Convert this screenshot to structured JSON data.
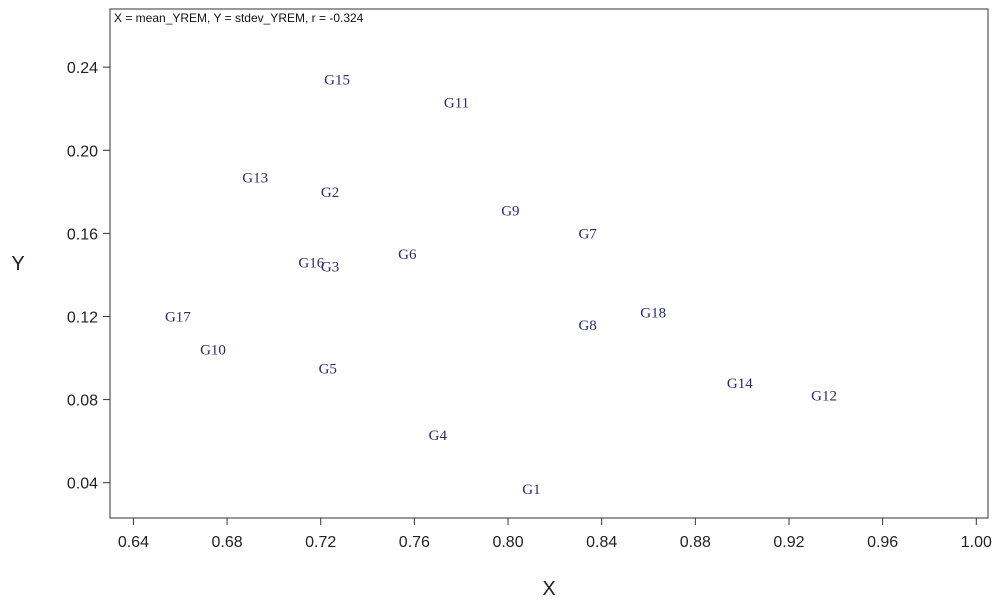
{
  "chart_data": {
    "type": "scatter",
    "annotation": "X = mean_YREM, Y = stdev_YREM, r = -0.324",
    "xlabel": "X",
    "ylabel": "Y",
    "xlim": [
      0.63,
      1.005
    ],
    "ylim": [
      0.023,
      0.268
    ],
    "xticks": [
      "0.64",
      "0.68",
      "0.72",
      "0.76",
      "0.80",
      "0.84",
      "0.88",
      "0.92",
      "0.96",
      "1.00"
    ],
    "yticks": [
      "0.04",
      "0.08",
      "0.12",
      "0.16",
      "0.20",
      "0.24"
    ],
    "grid": false,
    "point_color": "#2a2a6e",
    "points": [
      {
        "label": "G15",
        "x": 0.727,
        "y": 0.234
      },
      {
        "label": "G11",
        "x": 0.778,
        "y": 0.223
      },
      {
        "label": "G13",
        "x": 0.692,
        "y": 0.187
      },
      {
        "label": "G2",
        "x": 0.724,
        "y": 0.18
      },
      {
        "label": "G9",
        "x": 0.801,
        "y": 0.171
      },
      {
        "label": "G7",
        "x": 0.834,
        "y": 0.16
      },
      {
        "label": "G6",
        "x": 0.757,
        "y": 0.15
      },
      {
        "label": "G16",
        "x": 0.716,
        "y": 0.146
      },
      {
        "label": "G3",
        "x": 0.724,
        "y": 0.144
      },
      {
        "label": "G17",
        "x": 0.659,
        "y": 0.12
      },
      {
        "label": "G18",
        "x": 0.862,
        "y": 0.122
      },
      {
        "label": "G8",
        "x": 0.834,
        "y": 0.116
      },
      {
        "label": "G10",
        "x": 0.674,
        "y": 0.104
      },
      {
        "label": "G5",
        "x": 0.723,
        "y": 0.095
      },
      {
        "label": "G14",
        "x": 0.899,
        "y": 0.088
      },
      {
        "label": "G12",
        "x": 0.935,
        "y": 0.082
      },
      {
        "label": "G4",
        "x": 0.77,
        "y": 0.063
      },
      {
        "label": "G1",
        "x": 0.81,
        "y": 0.037
      }
    ]
  }
}
